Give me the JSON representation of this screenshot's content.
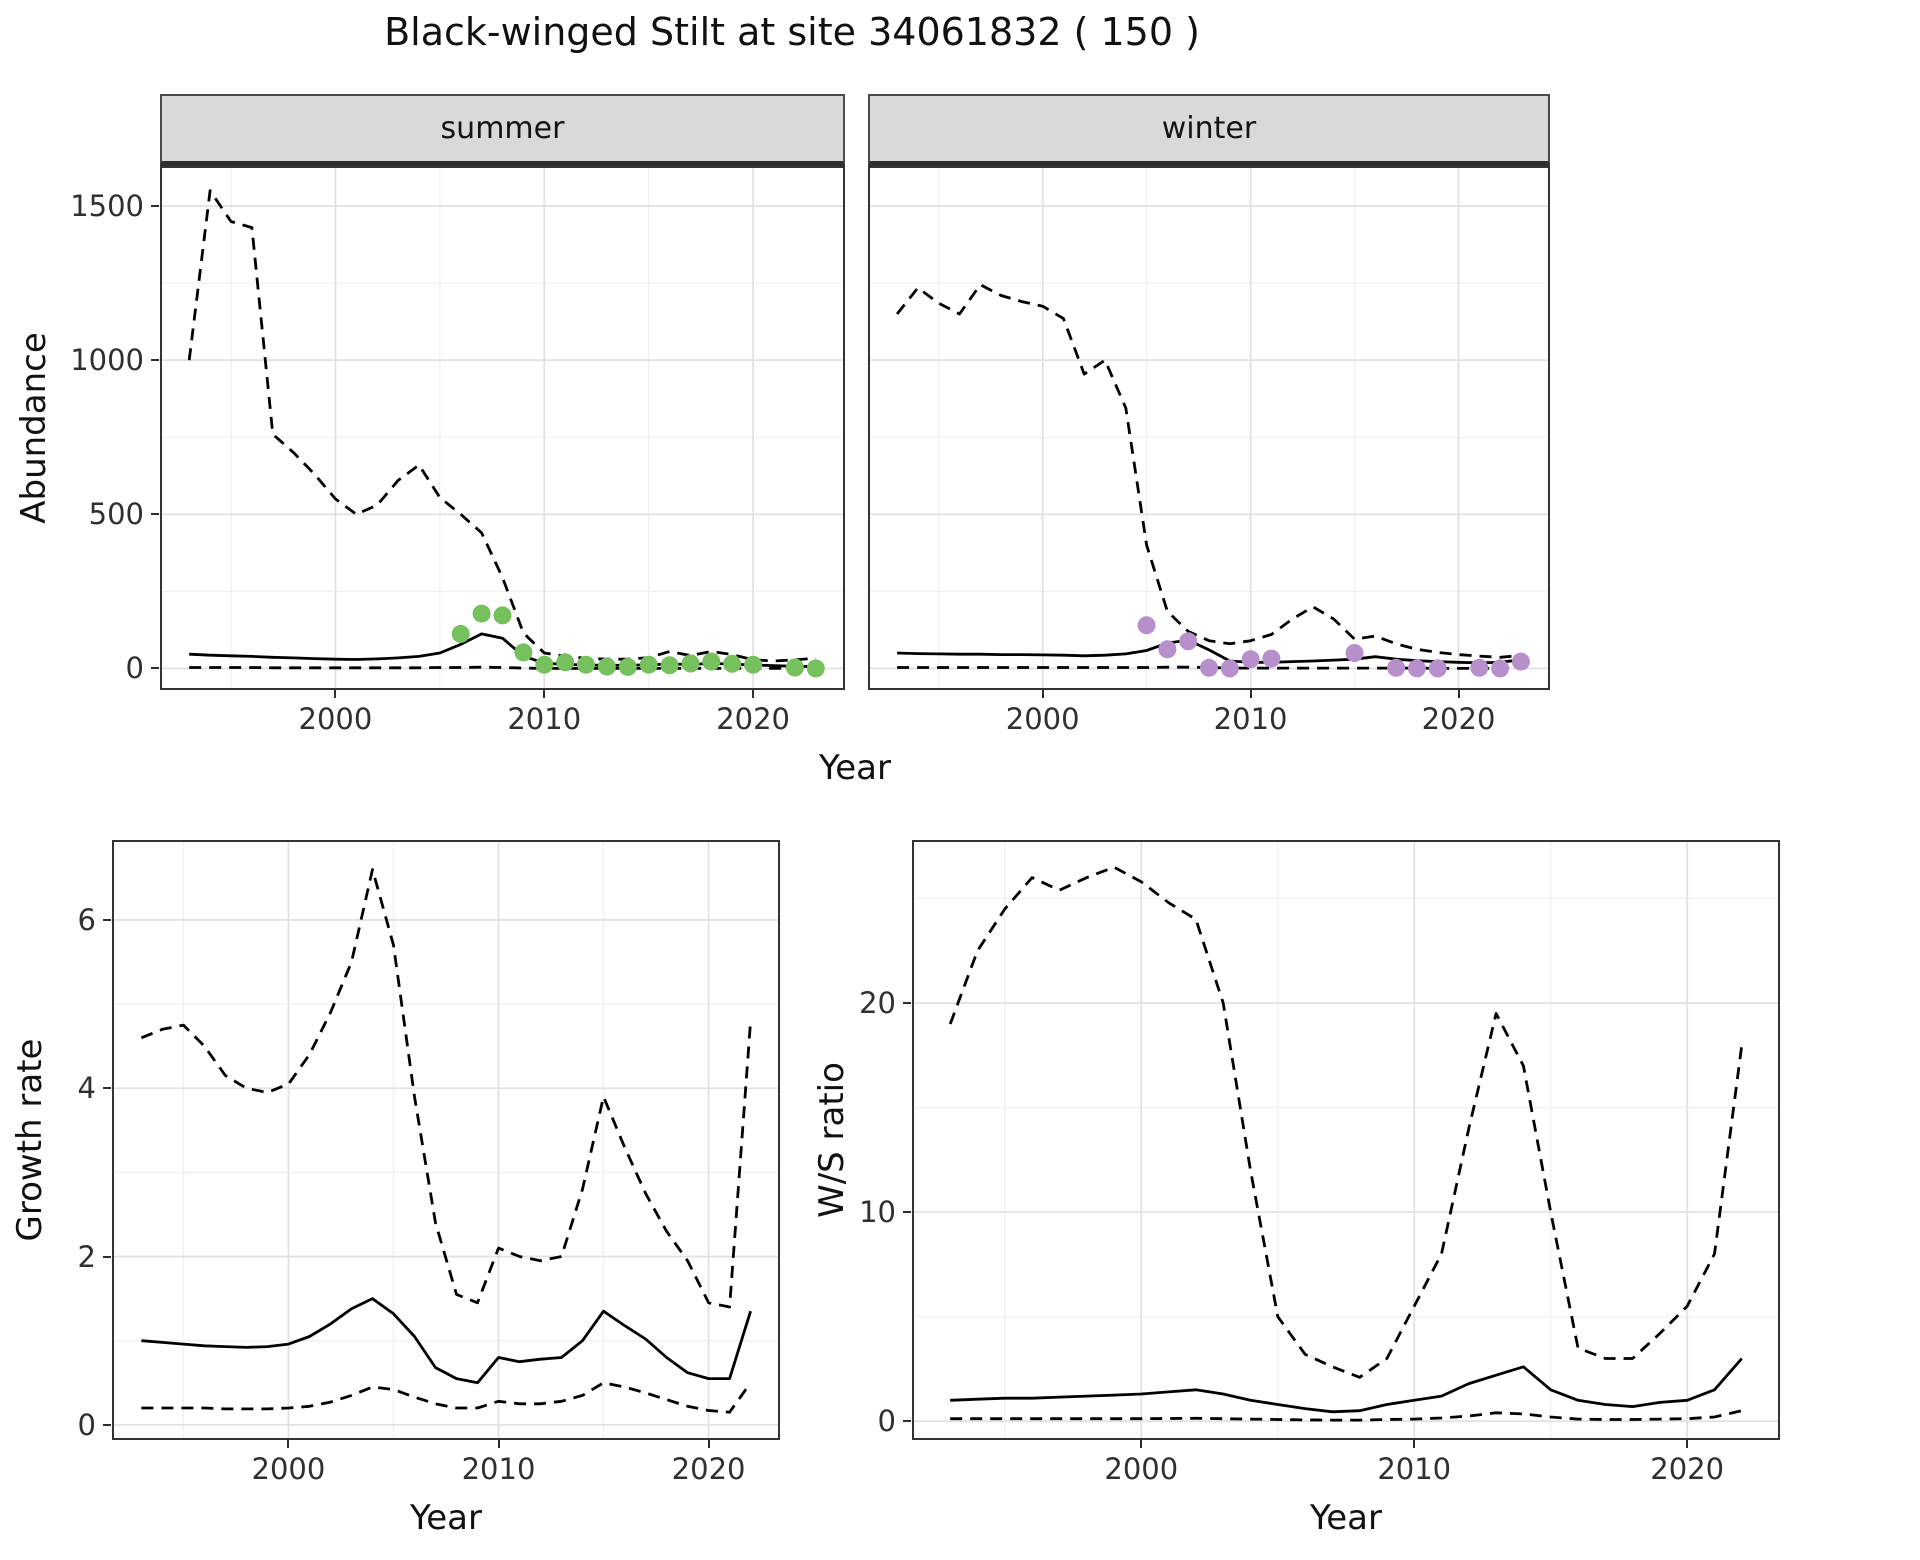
{
  "title": "Black-winged Stilt at site 34061832 ( 150 )",
  "labels": {
    "year_axis": "Year",
    "abundance_axis": "Abundance",
    "growth_axis": "Growth rate",
    "ratio_axis": "W/S ratio",
    "facet_summer": "summer",
    "facet_winter": "winter"
  },
  "colors": {
    "summer_points": "#76c05e",
    "winter_points": "#b78fcb",
    "line": "#000000",
    "grid_major": "#e2e2e2",
    "grid_minor": "#f0f0f0",
    "panel_border": "#333333",
    "strip_bg": "#d9d9d9"
  },
  "chart_data": [
    {
      "id": "abundance-summer",
      "type": "line",
      "facet": "summer",
      "xlabel": "Year",
      "ylabel": "Abundance",
      "xlim": [
        1991.6,
        2024.4
      ],
      "ylim": [
        -70,
        1630
      ],
      "xticks": [
        2000,
        2010,
        2020
      ],
      "xminor": [
        1995,
        2005,
        2015
      ],
      "yticks": [
        0,
        500,
        1000,
        1500
      ],
      "yminor": [
        250,
        750,
        1250
      ],
      "years": [
        1993,
        1994,
        1995,
        1996,
        1997,
        1998,
        1999,
        2000,
        2001,
        2002,
        2003,
        2004,
        2005,
        2006,
        2007,
        2008,
        2009,
        2010,
        2011,
        2012,
        2013,
        2014,
        2015,
        2016,
        2017,
        2018,
        2019,
        2020,
        2021,
        2022,
        2023
      ],
      "series": [
        {
          "name": "upper_ci",
          "style": "dashed",
          "values": [
            1000,
            1550,
            1450,
            1430,
            760,
            700,
            630,
            550,
            500,
            530,
            610,
            660,
            555,
            500,
            440,
            295,
            115,
            50,
            40,
            33,
            30,
            30,
            35,
            55,
            42,
            55,
            45,
            28,
            24,
            28,
            33
          ]
        },
        {
          "name": "median",
          "style": "solid",
          "values": [
            46,
            43,
            41,
            39,
            36,
            34,
            32,
            30,
            29,
            31,
            34,
            39,
            50,
            78,
            112,
            98,
            40,
            17,
            13,
            11,
            10,
            10,
            12,
            14,
            13,
            16,
            14,
            11,
            9,
            7,
            6
          ]
        },
        {
          "name": "lower_ci",
          "style": "dashed",
          "values": [
            3,
            3,
            3,
            3,
            2,
            2,
            2,
            2,
            2,
            2,
            2,
            2,
            3,
            3,
            4,
            3,
            1,
            0,
            0,
            0,
            0,
            0,
            0,
            0,
            0,
            0,
            0,
            0,
            0,
            0,
            0
          ]
        }
      ],
      "points": {
        "name": "observed_summer",
        "color": "#76c05e",
        "x": [
          2006,
          2007,
          2008,
          2009,
          2010,
          2011,
          2012,
          2013,
          2014,
          2015,
          2016,
          2017,
          2018,
          2019,
          2020,
          2022,
          2023
        ],
        "y": [
          112,
          178,
          172,
          52,
          12,
          20,
          12,
          6,
          5,
          12,
          10,
          16,
          22,
          15,
          12,
          3,
          0
        ]
      }
    },
    {
      "id": "abundance-winter",
      "type": "line",
      "facet": "winter",
      "xlabel": "Year",
      "ylabel": "Abundance",
      "xlim": [
        1991.6,
        2024.4
      ],
      "ylim": [
        -70,
        1630
      ],
      "xticks": [
        2000,
        2010,
        2020
      ],
      "xminor": [
        1995,
        2005,
        2015
      ],
      "yticks": [
        0,
        500,
        1000,
        1500
      ],
      "yminor": [
        250,
        750,
        1250
      ],
      "years": [
        1993,
        1994,
        1995,
        1996,
        1997,
        1998,
        1999,
        2000,
        2001,
        2002,
        2003,
        2004,
        2005,
        2006,
        2007,
        2008,
        2009,
        2010,
        2011,
        2012,
        2013,
        2014,
        2015,
        2016,
        2017,
        2018,
        2019,
        2020,
        2021,
        2022,
        2023
      ],
      "series": [
        {
          "name": "upper_ci",
          "style": "dashed",
          "values": [
            1150,
            1235,
            1185,
            1150,
            1245,
            1210,
            1190,
            1175,
            1135,
            955,
            1000,
            845,
            400,
            185,
            120,
            90,
            80,
            90,
            110,
            160,
            200,
            160,
            95,
            105,
            80,
            62,
            52,
            45,
            40,
            36,
            42
          ]
        },
        {
          "name": "median",
          "style": "solid",
          "values": [
            50,
            48,
            47,
            46,
            46,
            45,
            45,
            44,
            43,
            41,
            43,
            47,
            58,
            82,
            92,
            60,
            24,
            20,
            20,
            22,
            24,
            27,
            30,
            38,
            30,
            25,
            22,
            20,
            18,
            20,
            28
          ]
        },
        {
          "name": "lower_ci",
          "style": "dashed",
          "values": [
            3,
            3,
            3,
            3,
            3,
            3,
            3,
            3,
            3,
            3,
            3,
            3,
            3,
            4,
            4,
            3,
            1,
            1,
            1,
            1,
            1,
            1,
            1,
            1,
            1,
            1,
            0,
            0,
            0,
            0,
            0
          ]
        }
      ],
      "points": {
        "name": "observed_winter",
        "color": "#b78fcb",
        "x": [
          2005,
          2006,
          2007,
          2008,
          2009,
          2010,
          2011,
          2015,
          2017,
          2018,
          2019,
          2021,
          2022,
          2023
        ],
        "y": [
          140,
          62,
          88,
          2,
          0,
          30,
          32,
          50,
          2,
          0,
          0,
          2,
          0,
          22
        ]
      }
    },
    {
      "id": "growth-rate",
      "type": "line",
      "xlabel": "Year",
      "ylabel": "Growth rate",
      "xlim": [
        1991.6,
        2023.4
      ],
      "ylim": [
        -0.18,
        6.95
      ],
      "xticks": [
        2000,
        2010,
        2020
      ],
      "xminor": [
        1995,
        2005,
        2015
      ],
      "yticks": [
        0,
        2,
        4,
        6
      ],
      "yminor": [
        1,
        3,
        5
      ],
      "years": [
        1993,
        1994,
        1995,
        1996,
        1997,
        1998,
        1999,
        2000,
        2001,
        2002,
        2003,
        2004,
        2005,
        2006,
        2007,
        2008,
        2009,
        2010,
        2011,
        2012,
        2013,
        2014,
        2015,
        2016,
        2017,
        2018,
        2019,
        2020,
        2021,
        2022
      ],
      "series": [
        {
          "name": "upper_ci",
          "style": "dashed",
          "values": [
            4.6,
            4.7,
            4.75,
            4.5,
            4.15,
            4.0,
            3.95,
            4.05,
            4.4,
            4.9,
            5.5,
            6.6,
            5.7,
            3.9,
            2.4,
            1.55,
            1.45,
            2.1,
            2.0,
            1.95,
            2.0,
            2.8,
            3.9,
            3.3,
            2.75,
            2.3,
            1.95,
            1.45,
            1.4,
            4.8
          ]
        },
        {
          "name": "median",
          "style": "solid",
          "values": [
            1.0,
            0.98,
            0.96,
            0.94,
            0.93,
            0.92,
            0.93,
            0.96,
            1.05,
            1.2,
            1.38,
            1.5,
            1.32,
            1.05,
            0.68,
            0.55,
            0.5,
            0.8,
            0.75,
            0.78,
            0.8,
            1.0,
            1.35,
            1.18,
            1.02,
            0.8,
            0.62,
            0.55,
            0.55,
            1.35
          ]
        },
        {
          "name": "lower_ci",
          "style": "dashed",
          "values": [
            0.2,
            0.2,
            0.2,
            0.2,
            0.19,
            0.19,
            0.19,
            0.2,
            0.22,
            0.27,
            0.35,
            0.45,
            0.42,
            0.33,
            0.25,
            0.2,
            0.2,
            0.28,
            0.25,
            0.25,
            0.28,
            0.35,
            0.5,
            0.45,
            0.38,
            0.3,
            0.22,
            0.17,
            0.15,
            0.5
          ]
        }
      ]
    },
    {
      "id": "ws-ratio",
      "type": "line",
      "xlabel": "Year",
      "ylabel": "W/S ratio",
      "xlim": [
        1991.6,
        2023.4
      ],
      "ylim": [
        -0.9,
        27.8
      ],
      "xticks": [
        2000,
        2010,
        2020
      ],
      "xminor": [
        1995,
        2005,
        2015
      ],
      "yticks": [
        0,
        10,
        20
      ],
      "yminor": [
        5,
        15,
        25
      ],
      "years": [
        1993,
        1994,
        1995,
        1996,
        1997,
        1998,
        1999,
        2000,
        2001,
        2002,
        2003,
        2004,
        2005,
        2006,
        2007,
        2008,
        2009,
        2010,
        2011,
        2012,
        2013,
        2014,
        2015,
        2016,
        2017,
        2018,
        2019,
        2020,
        2021,
        2022
      ],
      "series": [
        {
          "name": "upper_ci",
          "style": "dashed",
          "values": [
            19,
            22.5,
            24.5,
            26,
            25.4,
            26,
            26.5,
            25.8,
            24.8,
            24,
            20,
            12,
            5,
            3.2,
            2.6,
            2.1,
            3,
            5.5,
            8,
            14,
            19.5,
            17,
            10,
            3.5,
            3,
            3,
            4.2,
            5.5,
            8,
            18
          ]
        },
        {
          "name": "median",
          "style": "solid",
          "values": [
            1.0,
            1.05,
            1.1,
            1.1,
            1.15,
            1.2,
            1.25,
            1.3,
            1.4,
            1.5,
            1.3,
            1.0,
            0.8,
            0.6,
            0.45,
            0.5,
            0.8,
            1.0,
            1.2,
            1.8,
            2.2,
            2.6,
            1.5,
            1.0,
            0.8,
            0.7,
            0.9,
            1.0,
            1.5,
            3.0
          ]
        },
        {
          "name": "lower_ci",
          "style": "dashed",
          "values": [
            0.12,
            0.12,
            0.12,
            0.12,
            0.12,
            0.12,
            0.12,
            0.12,
            0.13,
            0.14,
            0.12,
            0.1,
            0.08,
            0.06,
            0.05,
            0.05,
            0.08,
            0.1,
            0.15,
            0.25,
            0.4,
            0.35,
            0.2,
            0.1,
            0.08,
            0.08,
            0.1,
            0.12,
            0.2,
            0.5
          ]
        }
      ]
    }
  ]
}
